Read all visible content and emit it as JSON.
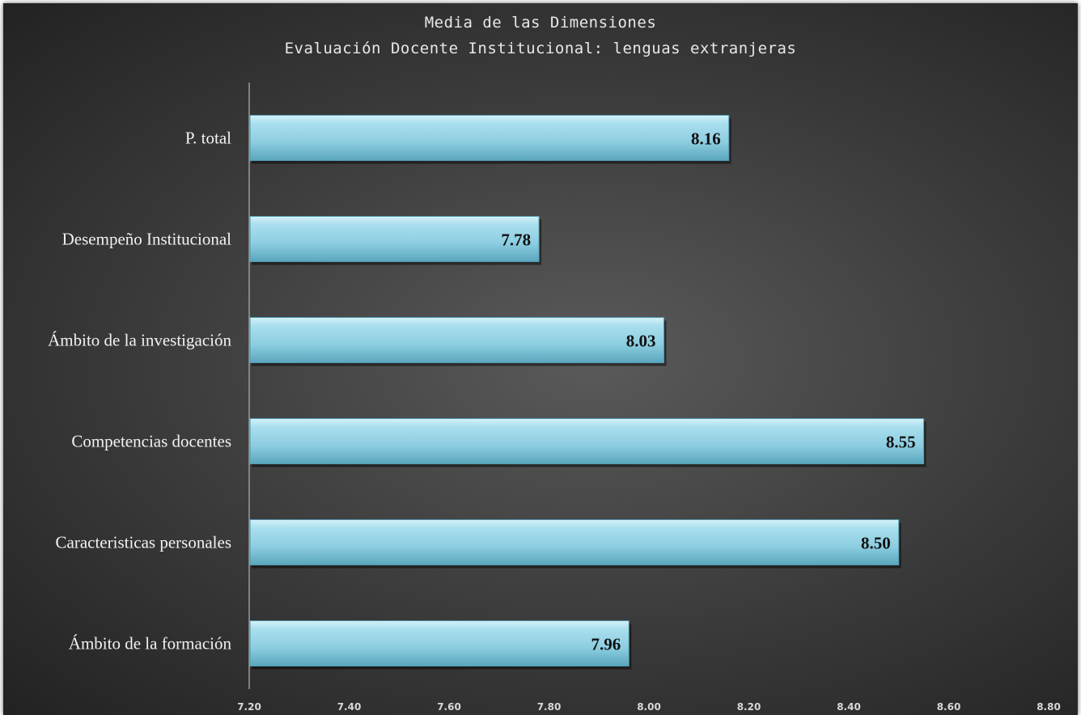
{
  "chart_data": {
    "type": "bar",
    "orientation": "horizontal",
    "title": "Media de las Dimensiones",
    "subtitle": "Evaluación Docente Institucional: lenguas extranjeras",
    "categories": [
      "P. total",
      "Desempeño Institucional",
      "Ámbito de la investigación",
      "Competencias docentes",
      "Caracteristicas personales",
      "Ámbito de la formación"
    ],
    "values": [
      8.16,
      7.78,
      8.03,
      8.55,
      8.5,
      7.96
    ],
    "value_labels": [
      "8.16",
      "7.78",
      "8.03",
      "8.55",
      "8.50",
      "7.96"
    ],
    "xlim": [
      7.2,
      8.8
    ],
    "x_ticks": [
      7.2,
      7.4,
      7.6,
      7.8,
      8.0,
      8.2,
      8.4,
      8.6,
      8.8
    ],
    "x_tick_labels": [
      "7.20",
      "7.40",
      "7.60",
      "7.80",
      "8.00",
      "8.20",
      "8.40",
      "8.60",
      "8.80"
    ],
    "grid": false,
    "legend": "none",
    "colors": {
      "bar": "#8ecfe2",
      "bar_highlight": "#c8ecf6",
      "bar_shadow": "#4f97ad",
      "background": "#3a3a3a"
    }
  }
}
